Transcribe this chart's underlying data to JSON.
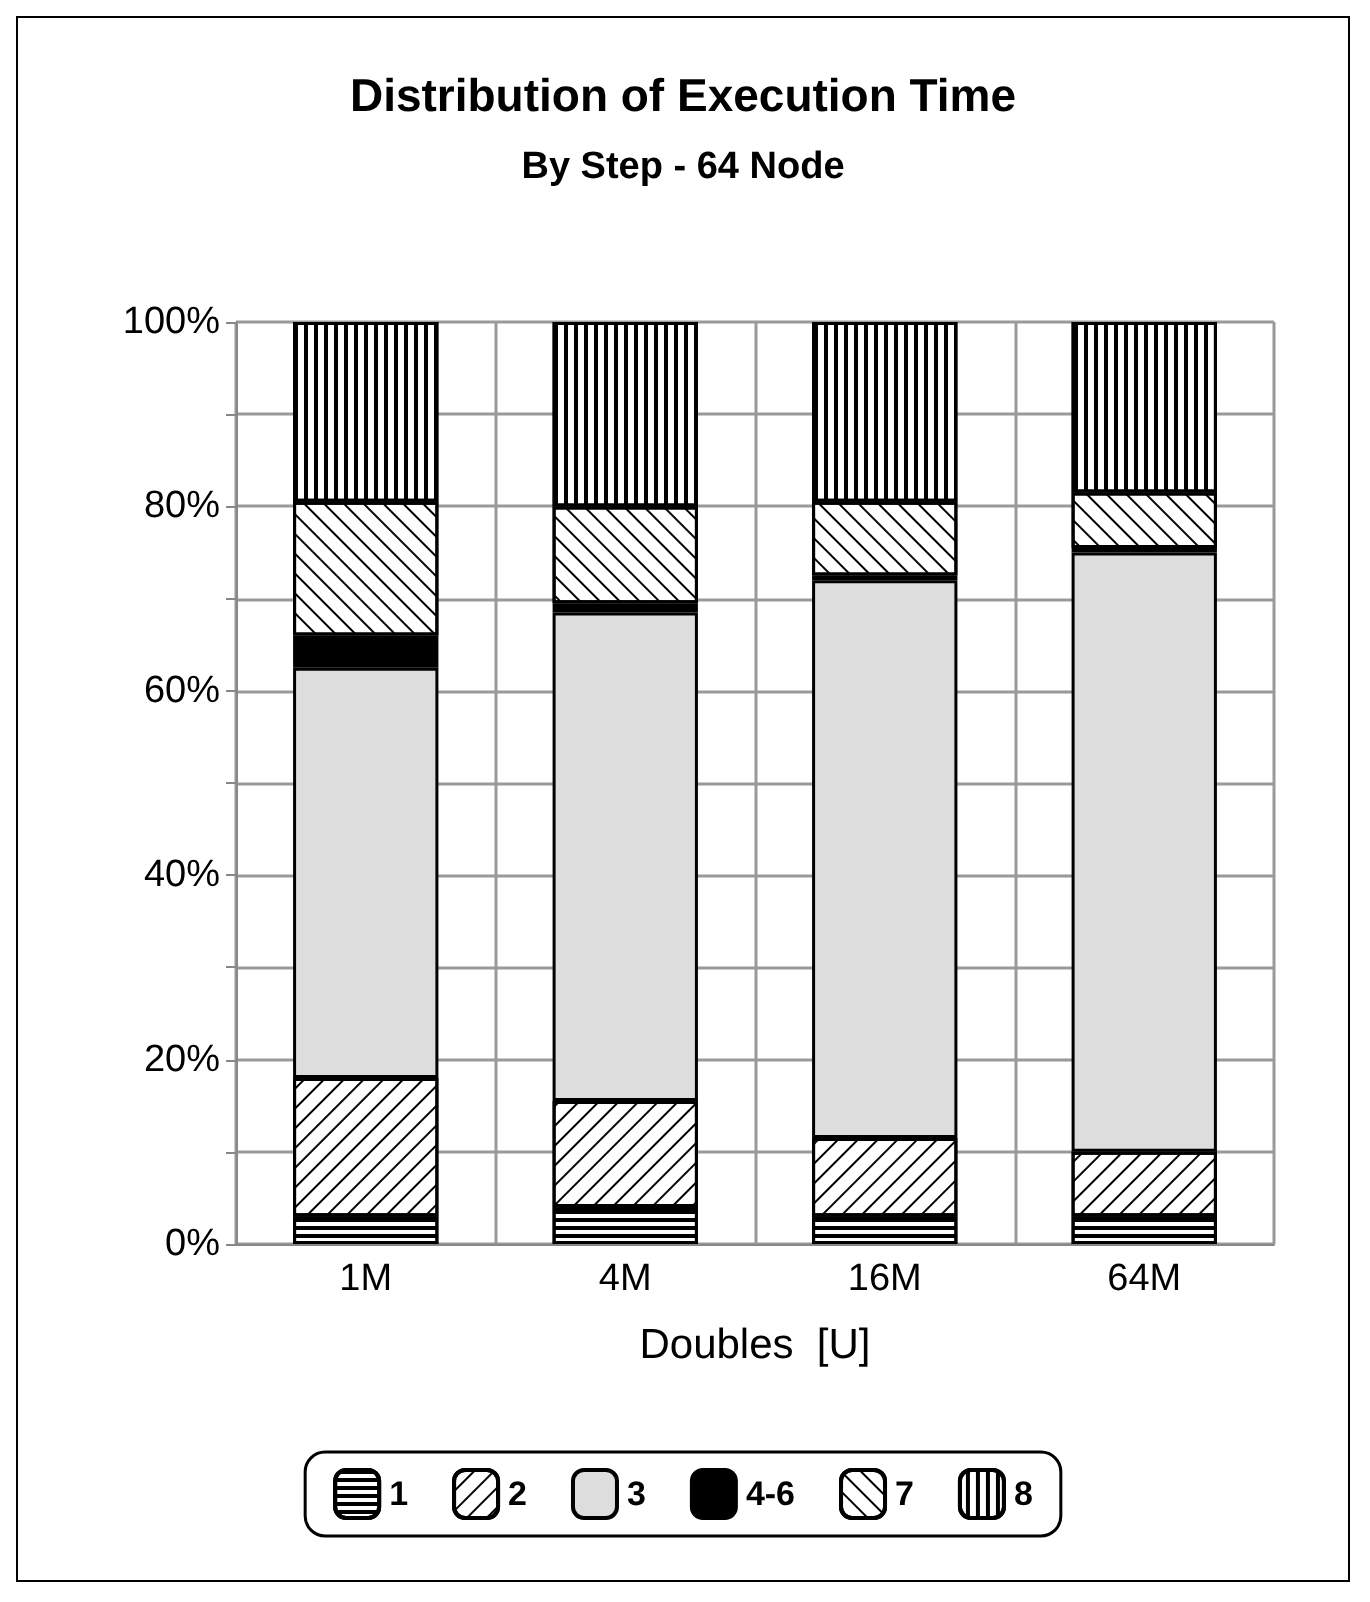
{
  "chart_data": {
    "type": "bar",
    "title": "Distribution of Execution Time",
    "subtitle": "By Step - 64 Node",
    "xlabel": "Doubles  [U]",
    "categories": [
      "1M",
      "4M",
      "16M",
      "64M"
    ],
    "stacked": true,
    "grid": true,
    "legend": "bottom",
    "ylim": [
      0,
      100
    ],
    "yticks": [
      {
        "value": 0,
        "label": "0%"
      },
      {
        "value": 10,
        "label": null
      },
      {
        "value": 20,
        "label": "20%"
      },
      {
        "value": 30,
        "label": null
      },
      {
        "value": 40,
        "label": "40%"
      },
      {
        "value": 50,
        "label": null
      },
      {
        "value": 60,
        "label": "60%"
      },
      {
        "value": 70,
        "label": null
      },
      {
        "value": 80,
        "label": "80%"
      },
      {
        "value": 90,
        "label": null
      },
      {
        "value": 100,
        "label": "100%"
      }
    ],
    "series": [
      {
        "name": "1",
        "color": "#ffffff",
        "values": [
          3,
          4,
          3,
          3
        ]
      },
      {
        "name": "2",
        "color": "#ffffff",
        "values": [
          15,
          11.5,
          8.5,
          7
        ]
      },
      {
        "name": "3",
        "color": "#dddddd",
        "values": [
          44.5,
          53,
          60.5,
          65
        ]
      },
      {
        "name": "4-6",
        "color": "#000000",
        "values": [
          3.5,
          1,
          0.5,
          0.5
        ]
      },
      {
        "name": "7",
        "color": "#ffffff",
        "values": [
          14.5,
          10.5,
          8,
          6
        ]
      },
      {
        "name": "8",
        "color": "#ffffff",
        "values": [
          19.5,
          20,
          19.5,
          18.5
        ]
      }
    ]
  }
}
